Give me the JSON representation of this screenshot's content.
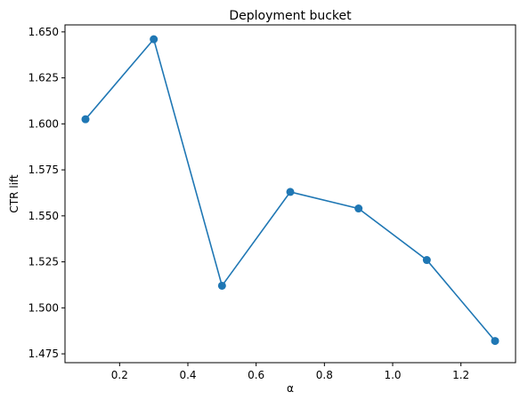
{
  "chart_data": {
    "type": "line",
    "title": "Deployment bucket",
    "xlabel": "α",
    "ylabel": "CTR lift",
    "x": [
      0.1,
      0.3,
      0.5,
      0.7,
      0.9,
      1.1,
      1.3
    ],
    "series": [
      {
        "values": [
          1.6025,
          1.646,
          1.512,
          1.563,
          1.554,
          1.526,
          1.482
        ]
      }
    ],
    "xlim": [
      0.04,
      1.36
    ],
    "ylim": [
      1.4702,
      1.6538
    ],
    "xticks": [
      0.2,
      0.4,
      0.6,
      0.8,
      1.0,
      1.2
    ],
    "xtick_labels": [
      "0.2",
      "0.4",
      "0.6",
      "0.8",
      "1.0",
      "1.2"
    ],
    "yticks": [
      1.475,
      1.5,
      1.525,
      1.55,
      1.575,
      1.6,
      1.625,
      1.65
    ],
    "ytick_labels": [
      "1.475",
      "1.500",
      "1.525",
      "1.550",
      "1.575",
      "1.600",
      "1.625",
      "1.650"
    ],
    "grid": false,
    "markers": true,
    "colors": {
      "line": "#1f77b4",
      "axes": "#000000"
    }
  }
}
